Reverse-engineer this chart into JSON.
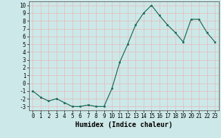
{
  "x": [
    0,
    1,
    2,
    3,
    4,
    5,
    6,
    7,
    8,
    9,
    10,
    11,
    12,
    13,
    14,
    15,
    16,
    17,
    18,
    19,
    20,
    21,
    22,
    23
  ],
  "y": [
    -1.0,
    -1.8,
    -2.3,
    -2.0,
    -2.5,
    -3.0,
    -3.0,
    -2.8,
    -3.0,
    -3.0,
    -0.7,
    2.7,
    5.0,
    7.5,
    9.0,
    10.0,
    8.7,
    7.5,
    6.5,
    5.3,
    8.2,
    8.2,
    6.5,
    5.3
  ],
  "line_color": "#1a6b5a",
  "marker": "s",
  "markersize": 2.0,
  "linewidth": 0.9,
  "xlabel": "Humidex (Indice chaleur)",
  "xlabel_fontsize": 7,
  "xlim": [
    -0.5,
    23.5
  ],
  "ylim": [
    -3.5,
    10.5
  ],
  "yticks": [
    -3,
    -2,
    -1,
    0,
    1,
    2,
    3,
    4,
    5,
    6,
    7,
    8,
    9,
    10
  ],
  "xticks": [
    0,
    1,
    2,
    3,
    4,
    5,
    6,
    7,
    8,
    9,
    10,
    11,
    12,
    13,
    14,
    15,
    16,
    17,
    18,
    19,
    20,
    21,
    22,
    23
  ],
  "bg_color": "#cde8e8",
  "grid_color": "#e8b8b8",
  "grid_linewidth": 0.5,
  "tick_fontsize": 5.5,
  "xlabel_fontfamily": "monospace"
}
